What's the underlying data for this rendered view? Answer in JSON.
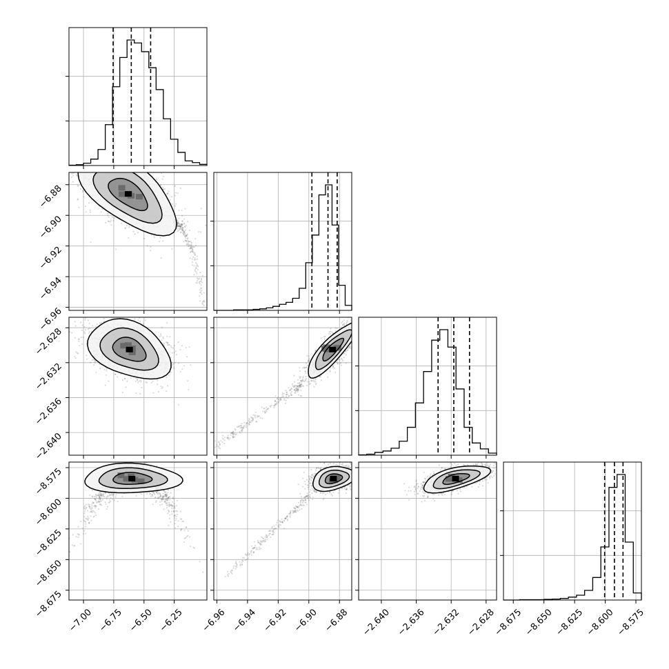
{
  "chart_data": {
    "type": "corner",
    "parameters": [
      {
        "range": [
          -7.12,
          -5.98
        ],
        "ticks": [
          -7.0,
          -6.75,
          -6.5,
          -6.25
        ],
        "tick_labels": [
          "−7.00",
          "−6.75",
          "−6.50",
          "−6.25"
        ],
        "quantiles": [
          -6.755,
          -6.605,
          -6.445
        ],
        "hist_values": [
          1,
          3,
          8,
          22,
          55,
          140,
          270,
          370,
          430,
          420,
          390,
          335,
          260,
          160,
          90,
          45,
          16,
          10,
          4
        ]
      },
      {
        "range": [
          -6.962,
          -6.872
        ],
        "ticks": [
          -6.96,
          -6.94,
          -6.92,
          -6.9,
          -6.88
        ],
        "tick_labels": [
          "−6.96",
          "−6.94",
          "−6.92",
          "−6.90",
          "−6.88"
        ],
        "quantiles": [
          -6.898,
          -6.8875,
          -6.8815
        ],
        "hist_values": [
          0,
          0,
          0,
          1,
          1,
          1,
          2,
          3,
          5,
          8,
          12,
          16,
          24,
          44,
          95,
          150,
          230,
          250,
          170,
          50,
          10
        ]
      },
      {
        "range": [
          -2.6426,
          -2.6268
        ],
        "ticks": [
          -2.64,
          -2.636,
          -2.632,
          -2.628
        ],
        "tick_labels": [
          "−2.640",
          "−2.636",
          "−2.632",
          "−2.628"
        ],
        "quantiles": [
          -2.6335,
          -2.6317,
          -2.6299
        ],
        "hist_values": [
          1,
          3,
          8,
          12,
          20,
          40,
          80,
          150,
          240,
          330,
          360,
          310,
          190,
          80,
          35,
          18,
          6
        ]
      },
      {
        "range": [
          -8.683,
          -8.5705
        ],
        "ticks": [
          -8.675,
          -8.65,
          -8.625,
          -8.6,
          -8.575
        ],
        "tick_labels": [
          "−8.675",
          "−8.650",
          "−8.625",
          "−8.600",
          "−8.575"
        ],
        "quantiles": [
          -8.6005,
          -8.5925,
          -8.5855
        ],
        "hist_values": [
          0,
          0,
          1,
          1,
          1,
          2,
          3,
          5,
          9,
          15,
          30,
          70,
          165,
          350,
          390,
          180,
          22
        ]
      }
    ],
    "left_labels": [
      {
        "row": 1,
        "range": [
          -6.962,
          -6.872
        ],
        "ticks": [
          -6.88,
          -6.9,
          -6.92,
          -6.94,
          -6.96
        ],
        "tick_labels": [
          "−6.88",
          "−6.90",
          "−6.92",
          "−6.94",
          "−6.96"
        ]
      },
      {
        "row": 2,
        "range": [
          -2.6426,
          -2.6268
        ],
        "ticks": [
          -2.628,
          -2.632,
          -2.636,
          -2.64
        ],
        "tick_labels": [
          "−2.628",
          "−2.632",
          "−2.636",
          "−2.640"
        ]
      },
      {
        "row": 3,
        "range": [
          -8.683,
          -8.5705
        ],
        "ticks": [
          -8.575,
          -8.6,
          -8.625,
          -8.65,
          -8.675
        ],
        "tick_labels": [
          "−8.575",
          "−8.600",
          "−8.625",
          "−8.650",
          "−8.675"
        ]
      }
    ],
    "grid": true,
    "legend": "none"
  }
}
